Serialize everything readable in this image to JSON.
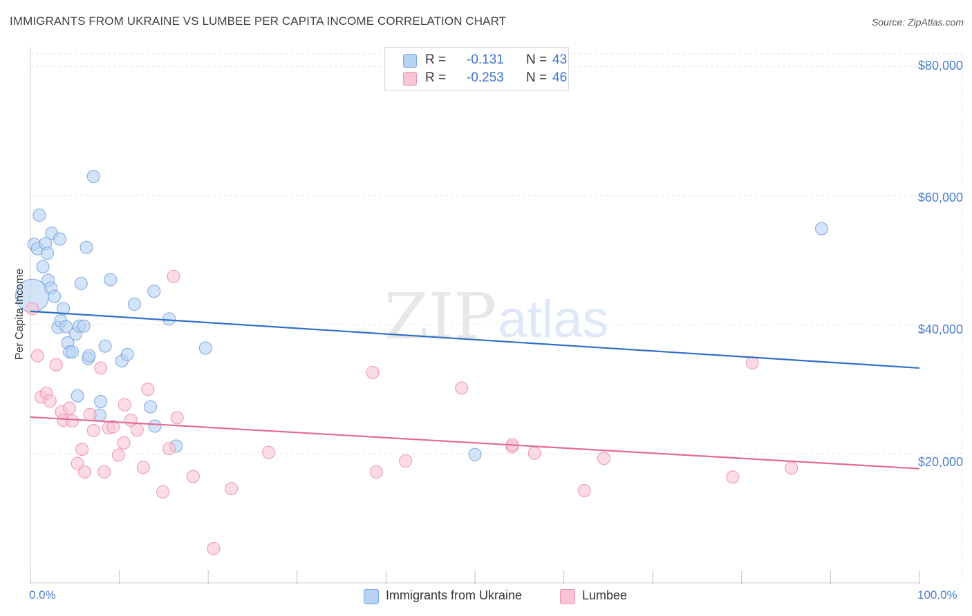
{
  "header": {
    "title": "IMMIGRANTS FROM UKRAINE VS LUMBEE PER CAPITA INCOME CORRELATION CHART",
    "source": "Source: ZipAtlas.com"
  },
  "legend": {
    "r_label": "R =",
    "n_label": "N =",
    "rows": [
      {
        "r": "-0.131",
        "n": "43"
      },
      {
        "r": "-0.253",
        "n": "46"
      }
    ]
  },
  "colors": {
    "ukraine_fill": "#b8d2f4",
    "ukraine_stroke": "#7aa6de",
    "ukraine_line": "#2f6fc7",
    "lumbee_fill": "#f9c4d4",
    "lumbee_stroke": "#eb93b0",
    "lumbee_line": "#e36a95",
    "tick_color": "#4a7fd0"
  },
  "chart_data": {
    "type": "scatter",
    "title": "IMMIGRANTS FROM UKRAINE VS LUMBEE PER CAPITA INCOME CORRELATION CHART",
    "xlabel": "",
    "ylabel": "Per Capita Income",
    "xlim": [
      0,
      100
    ],
    "ylim": [
      0,
      82000
    ],
    "x_tick_labels": [
      "0.0%",
      "100.0%"
    ],
    "y_ticks": [
      20000,
      40000,
      60000,
      80000
    ],
    "y_tick_labels": [
      "$20,000",
      "$40,000",
      "$60,000",
      "$80,000"
    ],
    "grid": true,
    "legend_position": "top-center",
    "watermark": "ZIPatlas",
    "series": [
      {
        "name": "Immigrants from Ukraine",
        "r": -0.131,
        "n": 43,
        "trend": {
          "x": [
            0,
            100
          ],
          "y": [
            42100,
            33300
          ]
        },
        "points": [
          {
            "x": 0.2,
            "y": 44500,
            "big": true
          },
          {
            "x": 0.4,
            "y": 52500
          },
          {
            "x": 0.8,
            "y": 51800
          },
          {
            "x": 1.0,
            "y": 57000
          },
          {
            "x": 1.4,
            "y": 49000
          },
          {
            "x": 1.7,
            "y": 52600
          },
          {
            "x": 1.9,
            "y": 51100
          },
          {
            "x": 2.0,
            "y": 46900
          },
          {
            "x": 2.3,
            "y": 45700
          },
          {
            "x": 2.4,
            "y": 54200
          },
          {
            "x": 2.7,
            "y": 44400
          },
          {
            "x": 3.1,
            "y": 39600
          },
          {
            "x": 3.3,
            "y": 53300
          },
          {
            "x": 3.4,
            "y": 40600
          },
          {
            "x": 3.7,
            "y": 42500
          },
          {
            "x": 4.0,
            "y": 39700
          },
          {
            "x": 4.2,
            "y": 37200
          },
          {
            "x": 4.4,
            "y": 35800
          },
          {
            "x": 4.7,
            "y": 35800
          },
          {
            "x": 5.1,
            "y": 38600
          },
          {
            "x": 5.3,
            "y": 29000
          },
          {
            "x": 5.5,
            "y": 39800
          },
          {
            "x": 5.7,
            "y": 46400
          },
          {
            "x": 6.0,
            "y": 39800
          },
          {
            "x": 6.3,
            "y": 52000
          },
          {
            "x": 6.5,
            "y": 34800
          },
          {
            "x": 6.6,
            "y": 35200
          },
          {
            "x": 7.1,
            "y": 63000
          },
          {
            "x": 7.8,
            "y": 26000
          },
          {
            "x": 7.9,
            "y": 28100
          },
          {
            "x": 8.4,
            "y": 36700
          },
          {
            "x": 9.0,
            "y": 47000
          },
          {
            "x": 10.3,
            "y": 34400
          },
          {
            "x": 10.9,
            "y": 35400
          },
          {
            "x": 11.7,
            "y": 43200
          },
          {
            "x": 13.5,
            "y": 27300
          },
          {
            "x": 13.9,
            "y": 45200
          },
          {
            "x": 14.0,
            "y": 24300
          },
          {
            "x": 15.6,
            "y": 40900
          },
          {
            "x": 16.4,
            "y": 21200
          },
          {
            "x": 19.7,
            "y": 36400
          },
          {
            "x": 50.0,
            "y": 19900
          },
          {
            "x": 89.0,
            "y": 54900
          }
        ]
      },
      {
        "name": "Lumbee",
        "r": -0.253,
        "n": 46,
        "trend": {
          "x": [
            0,
            100
          ],
          "y": [
            25700,
            17700
          ]
        },
        "points": [
          {
            "x": 0.2,
            "y": 42500
          },
          {
            "x": 0.8,
            "y": 35200
          },
          {
            "x": 1.2,
            "y": 28800
          },
          {
            "x": 1.8,
            "y": 29400
          },
          {
            "x": 2.2,
            "y": 28200
          },
          {
            "x": 2.9,
            "y": 33800
          },
          {
            "x": 3.5,
            "y": 26500
          },
          {
            "x": 3.7,
            "y": 25200
          },
          {
            "x": 4.4,
            "y": 27100
          },
          {
            "x": 4.7,
            "y": 25100
          },
          {
            "x": 5.3,
            "y": 18500
          },
          {
            "x": 5.8,
            "y": 20700
          },
          {
            "x": 6.1,
            "y": 17200
          },
          {
            "x": 6.7,
            "y": 26100
          },
          {
            "x": 7.1,
            "y": 23600
          },
          {
            "x": 7.9,
            "y": 33300
          },
          {
            "x": 8.3,
            "y": 17200
          },
          {
            "x": 8.8,
            "y": 24000
          },
          {
            "x": 9.3,
            "y": 24200
          },
          {
            "x": 9.9,
            "y": 19800
          },
          {
            "x": 10.5,
            "y": 21700
          },
          {
            "x": 10.6,
            "y": 27600
          },
          {
            "x": 11.3,
            "y": 25200
          },
          {
            "x": 12.0,
            "y": 23700
          },
          {
            "x": 12.7,
            "y": 17900
          },
          {
            "x": 13.2,
            "y": 30000
          },
          {
            "x": 14.9,
            "y": 14100
          },
          {
            "x": 15.6,
            "y": 20800
          },
          {
            "x": 16.1,
            "y": 47500
          },
          {
            "x": 16.5,
            "y": 25600
          },
          {
            "x": 18.3,
            "y": 16500
          },
          {
            "x": 20.6,
            "y": 5300
          },
          {
            "x": 22.6,
            "y": 14600
          },
          {
            "x": 26.8,
            "y": 20200
          },
          {
            "x": 38.5,
            "y": 32600
          },
          {
            "x": 38.9,
            "y": 17200
          },
          {
            "x": 42.2,
            "y": 18900
          },
          {
            "x": 48.5,
            "y": 30200
          },
          {
            "x": 54.2,
            "y": 21100
          },
          {
            "x": 54.2,
            "y": 21400
          },
          {
            "x": 56.7,
            "y": 20100
          },
          {
            "x": 62.3,
            "y": 14300
          },
          {
            "x": 64.5,
            "y": 19300
          },
          {
            "x": 79.0,
            "y": 16400
          },
          {
            "x": 81.2,
            "y": 34100
          },
          {
            "x": 85.6,
            "y": 17800
          }
        ]
      }
    ]
  }
}
